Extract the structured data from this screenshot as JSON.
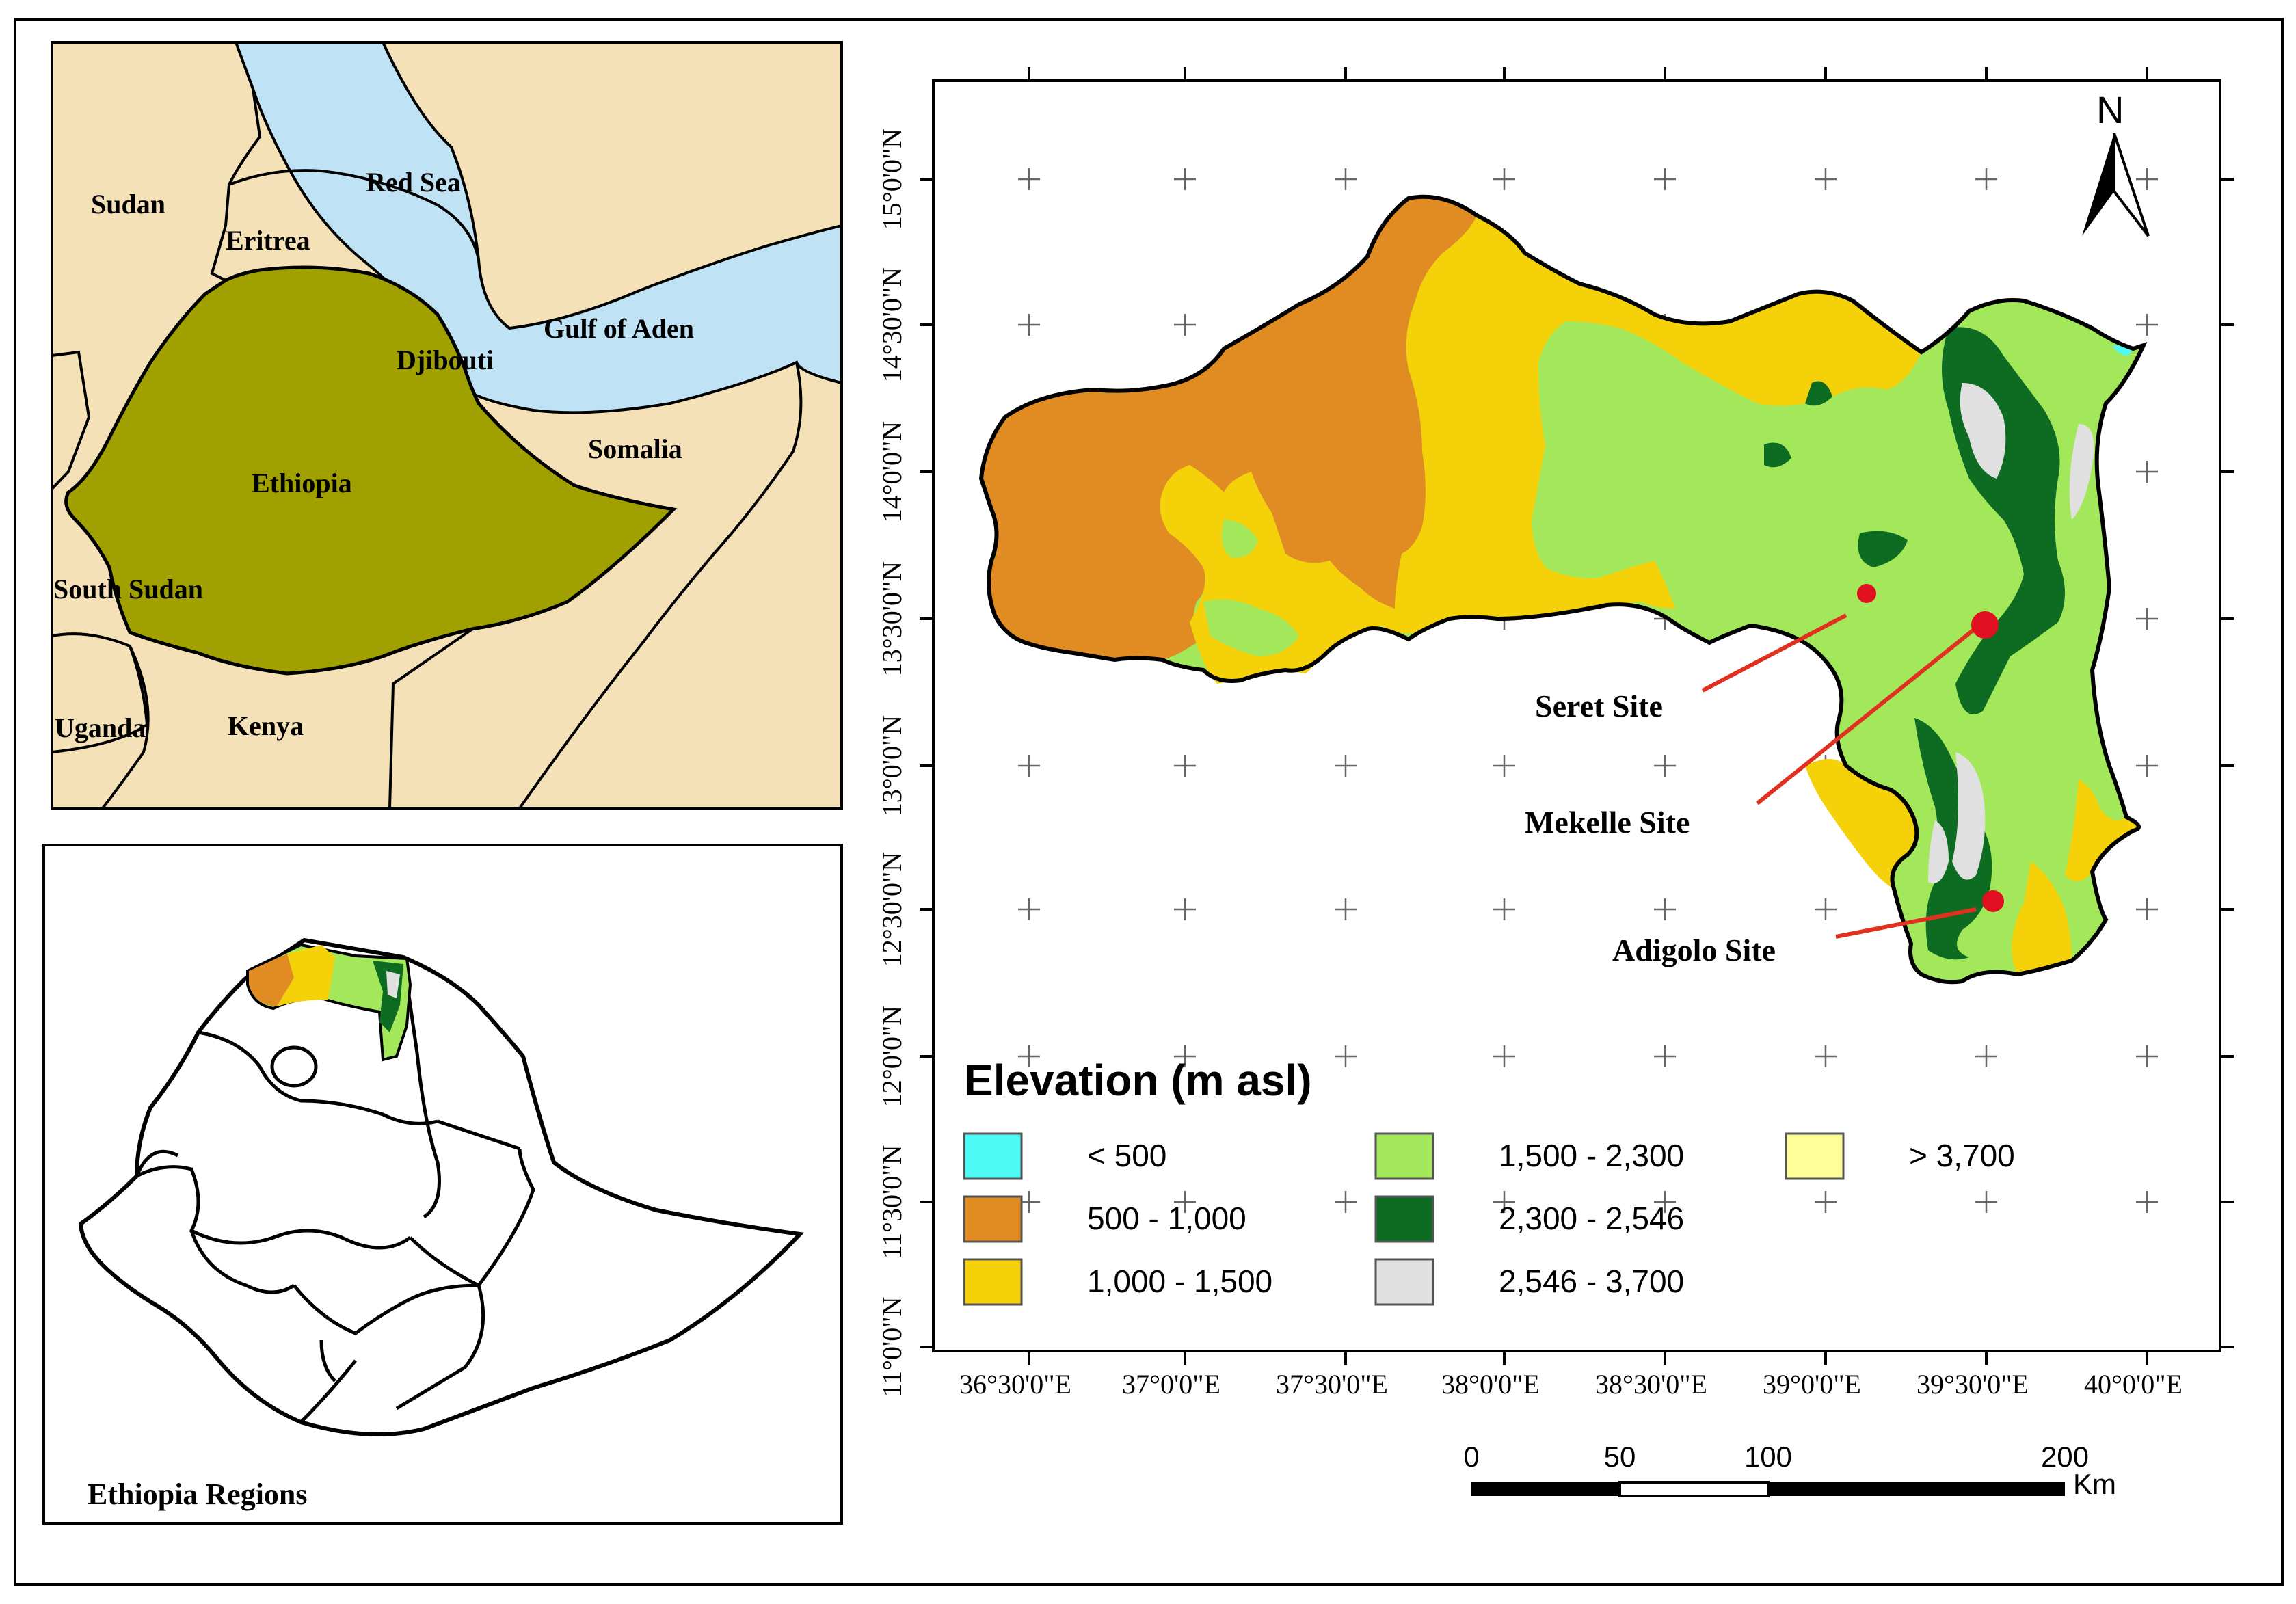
{
  "inset_africa": {
    "labels": {
      "red_sea": "Red Sea",
      "sudan": "Sudan",
      "eritrea": "Eritrea",
      "gulf_of_aden": "Gulf of Aden",
      "djibouti": "Djibouti",
      "somalia": "Somalia",
      "ethiopia": "Ethiopia",
      "south_sudan": "South Sudan",
      "uganda": "Uganda",
      "kenya": "Kenya"
    },
    "colors": {
      "land": "#f5e1b8",
      "sea": "#bfe3f5",
      "ethiopia": "#a0a000"
    }
  },
  "inset_regions": {
    "caption": "Ethiopia Regions"
  },
  "main_map": {
    "north_label": "N",
    "lat_labels": [
      "15°0'0\"N",
      "14°30'0\"N",
      "14°0'0\"N",
      "13°30'0\"N",
      "13°0'0\"N",
      "12°30'0\"N",
      "12°0'0\"N",
      "11°30'0\"N",
      "11°0'0\"N"
    ],
    "lon_labels": [
      "36°30'0\"E",
      "37°0'0\"E",
      "37°30'0\"E",
      "38°0'0\"E",
      "38°30'0\"E",
      "39°0'0\"E",
      "39°30'0\"E",
      "40°0'0\"E"
    ],
    "sites": [
      {
        "name": "Seret Site"
      },
      {
        "name": "Mekelle Site"
      },
      {
        "name": "Adigolo Site"
      }
    ],
    "site_color": "#e01020",
    "leader_color": "#e03020"
  },
  "legend": {
    "title": "Elevation (m asl)",
    "items": [
      {
        "label": "< 500",
        "color": "#4dfaf5"
      },
      {
        "label": "500 - 1,000",
        "color": "#e08c22"
      },
      {
        "label": "1,000 - 1,500",
        "color": "#f5d10a"
      },
      {
        "label": "1,500 - 2,300",
        "color": "#a3e85a"
      },
      {
        "label": "2,300 - 2,546",
        "color": "#0e6b22"
      },
      {
        "label": "2,546 - 3,700",
        "color": "#e0e0e0"
      },
      {
        "label": "> 3,700",
        "color": "#ffff99"
      }
    ]
  },
  "scale_bar": {
    "ticks": [
      "0",
      "50",
      "100",
      "200"
    ],
    "unit": "Km"
  }
}
